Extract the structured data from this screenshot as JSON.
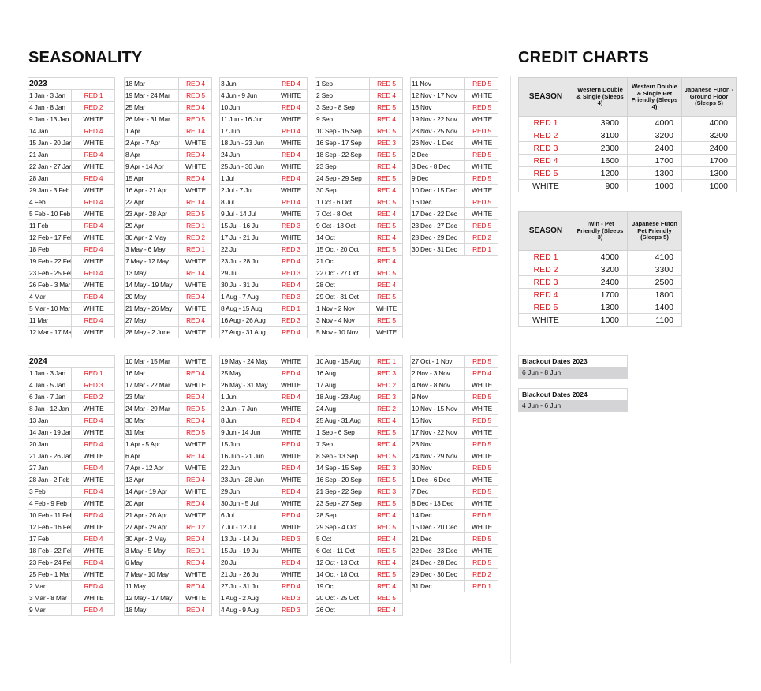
{
  "seasonality": {
    "title": "SEASONALITY",
    "years": [
      {
        "label": "2023",
        "columns": [
          [
            [
              "1 Jan - 3 Jan",
              "RED 1"
            ],
            [
              "4 Jan - 8 Jan",
              "RED 2"
            ],
            [
              "9 Jan - 13 Jan",
              "WHITE"
            ],
            [
              "14 Jan",
              "RED 4"
            ],
            [
              "15 Jan - 20 Jan",
              "WHITE"
            ],
            [
              "21 Jan",
              "RED 4"
            ],
            [
              "22 Jan - 27 Jan",
              "WHITE"
            ],
            [
              "28 Jan",
              "RED 4"
            ],
            [
              "29 Jan - 3 Feb",
              "WHITE"
            ],
            [
              "4 Feb",
              "RED 4"
            ],
            [
              "5 Feb - 10 Feb",
              "WHITE"
            ],
            [
              "11 Feb",
              "RED 4"
            ],
            [
              "12 Feb - 17 Feb",
              "WHITE"
            ],
            [
              "18 Feb",
              "RED 4"
            ],
            [
              "19 Feb - 22 Feb",
              "WHITE"
            ],
            [
              "23 Feb - 25 Feb",
              "RED 4"
            ],
            [
              "26 Feb - 3 Mar",
              "WHITE"
            ],
            [
              "4 Mar",
              "RED 4"
            ],
            [
              "5 Mar - 10 Mar",
              "WHITE"
            ],
            [
              "11 Mar",
              "RED 4"
            ],
            [
              "12 Mar - 17 Mar",
              "WHITE"
            ]
          ],
          [
            [
              "18 Mar",
              "RED 4"
            ],
            [
              "19 Mar - 24 Mar",
              "RED 5"
            ],
            [
              "25 Mar",
              "RED 4"
            ],
            [
              "26 Mar - 31 Mar",
              "RED 5"
            ],
            [
              "1 Apr",
              "RED 4"
            ],
            [
              "2 Apr - 7 Apr",
              "WHITE"
            ],
            [
              "8 Apr",
              "RED 4"
            ],
            [
              "9 Apr - 14 Apr",
              "WHITE"
            ],
            [
              "15 Apr",
              "RED 4"
            ],
            [
              "16 Apr - 21 Apr",
              "WHITE"
            ],
            [
              "22 Apr",
              "RED 4"
            ],
            [
              "23 Apr - 28 Apr",
              "RED 5"
            ],
            [
              "29 Apr",
              "RED 1"
            ],
            [
              "30 Apr - 2 May",
              "RED 2"
            ],
            [
              "3 May - 6 May",
              "RED 1"
            ],
            [
              "7 May - 12 May",
              "WHITE"
            ],
            [
              "13 May",
              "RED 4"
            ],
            [
              "14 May - 19 May",
              "WHITE"
            ],
            [
              "20 May",
              "RED 4"
            ],
            [
              "21 May - 26 May",
              "WHITE"
            ],
            [
              "27 May",
              "RED 4"
            ],
            [
              "28 May - 2 June",
              "WHITE"
            ]
          ],
          [
            [
              "3 Jun",
              "RED 4"
            ],
            [
              "4 Jun - 9 Jun",
              "WHITE"
            ],
            [
              "10 Jun",
              "RED 4"
            ],
            [
              "11 Jun - 16 Jun",
              "WHITE"
            ],
            [
              "17 Jun",
              "RED 4"
            ],
            [
              "18 Jun - 23 Jun",
              "WHITE"
            ],
            [
              "24 Jun",
              "RED 4"
            ],
            [
              "25 Jun - 30 Jun",
              "WHITE"
            ],
            [
              "1 Jul",
              "RED 4"
            ],
            [
              "2 Jul - 7 Jul",
              "WHITE"
            ],
            [
              "8 Jul",
              "RED 4"
            ],
            [
              "9 Jul - 14 Jul",
              "WHITE"
            ],
            [
              "15 Jul - 16 Jul",
              "RED 3"
            ],
            [
              "17 Jul - 21 Jul",
              "WHITE"
            ],
            [
              "22 Jul",
              "RED 3"
            ],
            [
              "23 Jul - 28 Jul",
              "RED 4"
            ],
            [
              "29 Jul",
              "RED 3"
            ],
            [
              "30 Jul - 31 Jul",
              "RED 4"
            ],
            [
              "1 Aug - 7 Aug",
              "RED 3"
            ],
            [
              "8 Aug - 15 Aug",
              "RED 1"
            ],
            [
              "16 Aug - 26 Aug",
              "RED 3"
            ],
            [
              "27 Aug - 31 Aug",
              "RED 4"
            ]
          ],
          [
            [
              "1 Sep",
              "RED 5"
            ],
            [
              "2 Sep",
              "RED 4"
            ],
            [
              "3 Sep - 8 Sep",
              "RED 5"
            ],
            [
              "9 Sep",
              "RED 4"
            ],
            [
              "10 Sep - 15 Sep",
              "RED 5"
            ],
            [
              "16 Sep - 17 Sep",
              "RED 3"
            ],
            [
              "18 Sep - 22 Sep",
              "RED 5"
            ],
            [
              "23 Sep",
              "RED 4"
            ],
            [
              "24 Sep - 29 Sep",
              "RED 5"
            ],
            [
              "30 Sep",
              "RED 4"
            ],
            [
              "1 Oct - 6 Oct",
              "RED 5"
            ],
            [
              "7 Oct - 8 Oct",
              "RED 4"
            ],
            [
              "9 Oct - 13 Oct",
              "RED 5"
            ],
            [
              "14 Oct",
              "RED 4"
            ],
            [
              "15 Oct - 20 Oct",
              "RED 5"
            ],
            [
              "21 Oct",
              "RED 4"
            ],
            [
              "22 Oct - 27 Oct",
              "RED 5"
            ],
            [
              "28 Oct",
              "RED 4"
            ],
            [
              "29 Oct - 31 Oct",
              "RED 5"
            ],
            [
              "1 Nov - 2 Nov",
              "WHITE"
            ],
            [
              "3 Nov - 4 Nov",
              "RED 5"
            ],
            [
              "5 Nov - 10 Nov",
              "WHITE"
            ]
          ],
          [
            [
              "11 Nov",
              "RED 5"
            ],
            [
              "12 Nov - 17 Nov",
              "WHITE"
            ],
            [
              "18 Nov",
              "RED 5"
            ],
            [
              "19 Nov - 22 Nov",
              "WHITE"
            ],
            [
              "23 Nov - 25 Nov",
              "RED 5"
            ],
            [
              "26 Nov - 1 Dec",
              "WHITE"
            ],
            [
              "2 Dec",
              "RED 5"
            ],
            [
              "3 Dec - 8 Dec",
              "WHITE"
            ],
            [
              "9 Dec",
              "RED 5"
            ],
            [
              "10 Dec - 15 Dec",
              "WHITE"
            ],
            [
              "16 Dec",
              "RED 5"
            ],
            [
              "17 Dec - 22 Dec",
              "WHITE"
            ],
            [
              "23 Dec - 27 Dec",
              "RED 5"
            ],
            [
              "28 Dec - 29 Dec",
              "RED 2"
            ],
            [
              "30 Dec - 31 Dec",
              "RED 1"
            ]
          ]
        ]
      },
      {
        "label": "2024",
        "columns": [
          [
            [
              "1 Jan - 3 Jan",
              "RED 1"
            ],
            [
              "4 Jan - 5 Jan",
              "RED 3"
            ],
            [
              "6 Jan - 7 Jan",
              "RED 2"
            ],
            [
              "8 Jan - 12 Jan",
              "WHITE"
            ],
            [
              "13 Jan",
              "RED 4"
            ],
            [
              "14 Jan - 19 Jan",
              "WHITE"
            ],
            [
              "20 Jan",
              "RED 4"
            ],
            [
              "21 Jan - 26 Jan",
              "WHITE"
            ],
            [
              "27 Jan",
              "RED 4"
            ],
            [
              "28 Jan - 2 Feb",
              "WHITE"
            ],
            [
              "3 Feb",
              "RED 4"
            ],
            [
              "4 Feb - 9 Feb",
              "WHITE"
            ],
            [
              "10 Feb - 11 Feb",
              "RED 4"
            ],
            [
              "12 Feb - 16 Feb",
              "WHITE"
            ],
            [
              "17 Feb",
              "RED 4"
            ],
            [
              "18 Feb - 22 Feb",
              "WHITE"
            ],
            [
              "23 Feb - 24 Feb",
              "RED 4"
            ],
            [
              "25 Feb - 1 Mar",
              "WHITE"
            ],
            [
              "2 Mar",
              "RED 4"
            ],
            [
              "3 Mar - 8 Mar",
              "WHITE"
            ],
            [
              "9 Mar",
              "RED 4"
            ]
          ],
          [
            [
              "10 Mar - 15 Mar",
              "WHITE"
            ],
            [
              "16 Mar",
              "RED 4"
            ],
            [
              "17 Mar - 22 Mar",
              "WHITE"
            ],
            [
              "23 Mar",
              "RED 4"
            ],
            [
              "24 Mar - 29 Mar",
              "RED 5"
            ],
            [
              "30 Mar",
              "RED 4"
            ],
            [
              "31 Mar",
              "RED 5"
            ],
            [
              "1 Apr - 5 Apr",
              "WHITE"
            ],
            [
              "6 Apr",
              "RED 4"
            ],
            [
              "7 Apr - 12 Apr",
              "WHITE"
            ],
            [
              "13 Apr",
              "RED 4"
            ],
            [
              "14 Apr - 19 Apr",
              "WHITE"
            ],
            [
              "20 Apr",
              "RED 4"
            ],
            [
              "21 Apr - 26 Apr",
              "WHITE"
            ],
            [
              "27 Apr - 29 Apr",
              "RED 2"
            ],
            [
              "30 Apr - 2 May",
              "RED 4"
            ],
            [
              "3 May - 5 May",
              "RED 1"
            ],
            [
              "6 May",
              "RED 4"
            ],
            [
              "7 May - 10 May",
              "WHITE"
            ],
            [
              "11 May",
              "RED 4"
            ],
            [
              "12 May - 17 May",
              "WHITE"
            ],
            [
              "18 May",
              "RED 4"
            ]
          ],
          [
            [
              "19 May - 24 May",
              "WHITE"
            ],
            [
              "25 May",
              "RED 4"
            ],
            [
              "26 May - 31 May",
              "WHITE"
            ],
            [
              "1 Jun",
              "RED 4"
            ],
            [
              "2 Jun - 7 Jun",
              "WHITE"
            ],
            [
              "8 Jun",
              "RED 4"
            ],
            [
              "9 Jun - 14 Jun",
              "WHITE"
            ],
            [
              "15 Jun",
              "RED 4"
            ],
            [
              "16 Jun - 21 Jun",
              "WHITE"
            ],
            [
              "22 Jun",
              "RED 4"
            ],
            [
              "23 Jun - 28 Jun",
              "WHITE"
            ],
            [
              "29 Jun",
              "RED 4"
            ],
            [
              "30 Jun - 5 Jul",
              "WHITE"
            ],
            [
              "6 Jul",
              "RED 4"
            ],
            [
              "7 Jul - 12 Jul",
              "WHITE"
            ],
            [
              "13 Jul - 14 Jul",
              "RED 3"
            ],
            [
              "15 Jul - 19 Jul",
              "WHITE"
            ],
            [
              "20 Jul",
              "RED 4"
            ],
            [
              "21 Jul - 26 Jul",
              "WHITE"
            ],
            [
              "27 Jul - 31 Jul",
              "RED 4"
            ],
            [
              "1 Aug - 2 Aug",
              "RED 3"
            ],
            [
              "4 Aug - 9 Aug",
              "RED 3"
            ]
          ],
          [
            [
              "10 Aug - 15 Aug",
              "RED 1"
            ],
            [
              "16 Aug",
              "RED 3"
            ],
            [
              "17 Aug",
              "RED 2"
            ],
            [
              "18 Aug - 23 Aug",
              "RED 3"
            ],
            [
              "24 Aug",
              "RED 2"
            ],
            [
              "25 Aug - 31 Aug",
              "RED 4"
            ],
            [
              "1 Sep - 6 Sep",
              "RED 5"
            ],
            [
              "7 Sep",
              "RED 4"
            ],
            [
              "8 Sep - 13 Sep",
              "RED 5"
            ],
            [
              "14 Sep - 15 Sep",
              "RED 3"
            ],
            [
              "16 Sep - 20 Sep",
              "RED 5"
            ],
            [
              "21 Sep - 22 Sep",
              "RED 3"
            ],
            [
              "23 Sep - 27 Sep",
              "RED 5"
            ],
            [
              "28 Sep",
              "RED 4"
            ],
            [
              "29 Sep - 4 Oct",
              "RED 5"
            ],
            [
              "5 Oct",
              "RED 4"
            ],
            [
              "6 Oct - 11 Oct",
              "RED 5"
            ],
            [
              "12 Oct - 13 Oct",
              "RED 4"
            ],
            [
              "14 Oct - 18 Oct",
              "RED 5"
            ],
            [
              "19 Oct",
              "RED 4"
            ],
            [
              "20 Oct - 25 Oct",
              "RED 5"
            ],
            [
              "26 Oct",
              "RED 4"
            ]
          ],
          [
            [
              "27 Oct - 1 Nov",
              "RED 5"
            ],
            [
              "2 Nov - 3 Nov",
              "RED 4"
            ],
            [
              "4 Nov - 8 Nov",
              "WHITE"
            ],
            [
              "9 Nov",
              "RED 5"
            ],
            [
              "10 Nov - 15 Nov",
              "WHITE"
            ],
            [
              "16 Nov",
              "RED 5"
            ],
            [
              "17 Nov - 22 Nov",
              "WHITE"
            ],
            [
              "23 Nov",
              "RED 5"
            ],
            [
              "24 Nov - 29 Nov",
              "WHITE"
            ],
            [
              "30 Nov",
              "RED 5"
            ],
            [
              "1 Dec - 6 Dec",
              "WHITE"
            ],
            [
              "7 Dec",
              "RED 5"
            ],
            [
              "8 Dec - 13 Dec",
              "WHITE"
            ],
            [
              "14 Dec",
              "RED 5"
            ],
            [
              "15 Dec - 20 Dec",
              "WHITE"
            ],
            [
              "21 Dec",
              "RED 5"
            ],
            [
              "22 Dec - 23 Dec",
              "WHITE"
            ],
            [
              "24 Dec - 28 Dec",
              "RED 5"
            ],
            [
              "29 Dec - 30 Dec",
              "RED 2"
            ],
            [
              "31 Dec",
              "RED 1"
            ]
          ]
        ]
      }
    ]
  },
  "credit": {
    "title": "CREDIT CHARTS",
    "colors": {
      "red": "#e8141c",
      "white_text": "#111111",
      "header_bg": "#e6e6e6"
    },
    "tables": [
      {
        "headers": [
          "SEASON",
          "Western Double & Single (Sleeps 4)",
          "Western Double & Single Pet Friendly (Sleeps 4)",
          "Japanese Futon - Ground Floor (Sleeps 5)"
        ],
        "rows": [
          [
            "RED 1",
            "3900",
            "4000",
            "4000"
          ],
          [
            "RED 2",
            "3100",
            "3200",
            "3200"
          ],
          [
            "RED 3",
            "2300",
            "2400",
            "2400"
          ],
          [
            "RED 4",
            "1600",
            "1700",
            "1700"
          ],
          [
            "RED 5",
            "1200",
            "1300",
            "1300"
          ],
          [
            "WHITE",
            "900",
            "1000",
            "1000"
          ]
        ]
      },
      {
        "headers": [
          "SEASON",
          "Twin - Pet Friendly (Sleeps 3)",
          "Japanese Futon Pet Friendly (Sleeps 5)"
        ],
        "rows": [
          [
            "RED 1",
            "4000",
            "4100"
          ],
          [
            "RED 2",
            "3200",
            "3300"
          ],
          [
            "RED 3",
            "2400",
            "2500"
          ],
          [
            "RED 4",
            "1700",
            "1800"
          ],
          [
            "RED 5",
            "1300",
            "1400"
          ],
          [
            "WHITE",
            "1000",
            "1100"
          ]
        ]
      }
    ],
    "blackouts": [
      {
        "title": "Blackout Dates 2023",
        "dates": "6 Jun - 8 Jun"
      },
      {
        "title": "Blackout Dates 2024",
        "dates": "4 Jun - 6 Jun"
      }
    ]
  }
}
